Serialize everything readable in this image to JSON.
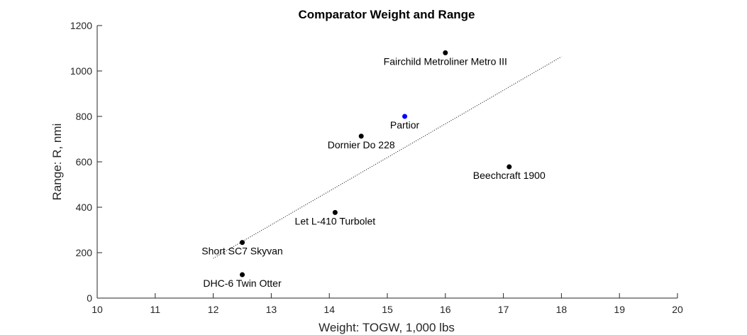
{
  "chart_data": {
    "type": "scatter",
    "title": "Comparator Weight and Range",
    "xlabel": "Weight: TOGW, 1,000 lbs",
    "ylabel": "Range: R, nmi",
    "xlim": [
      10,
      20
    ],
    "ylim": [
      0,
      1200
    ],
    "xticks": [
      10,
      11,
      12,
      13,
      14,
      15,
      16,
      17,
      18,
      19,
      20
    ],
    "yticks": [
      0,
      200,
      400,
      600,
      800,
      1000,
      1200
    ],
    "grid": false,
    "points": [
      {
        "label": "Fairchild Metroliner Metro III",
        "x": 16.0,
        "y": 1080,
        "color": "#000000"
      },
      {
        "label": "Partior",
        "x": 15.3,
        "y": 800,
        "color": "#0000ff"
      },
      {
        "label": "Dornier Do 228",
        "x": 14.55,
        "y": 713,
        "color": "#000000"
      },
      {
        "label": "Beechcraft 1900",
        "x": 17.1,
        "y": 578,
        "color": "#000000"
      },
      {
        "label": "Let L-410 Turbolet",
        "x": 14.1,
        "y": 377,
        "color": "#000000"
      },
      {
        "label": "Short SC7 Skyvan",
        "x": 12.5,
        "y": 245,
        "color": "#000000"
      },
      {
        "label": "DHC-6 Twin Otter",
        "x": 12.5,
        "y": 103,
        "color": "#000000"
      }
    ],
    "trendline": {
      "x": [
        12.0,
        18.0
      ],
      "y": [
        175,
        1063
      ],
      "style": "dotted",
      "color": "#000000"
    }
  }
}
